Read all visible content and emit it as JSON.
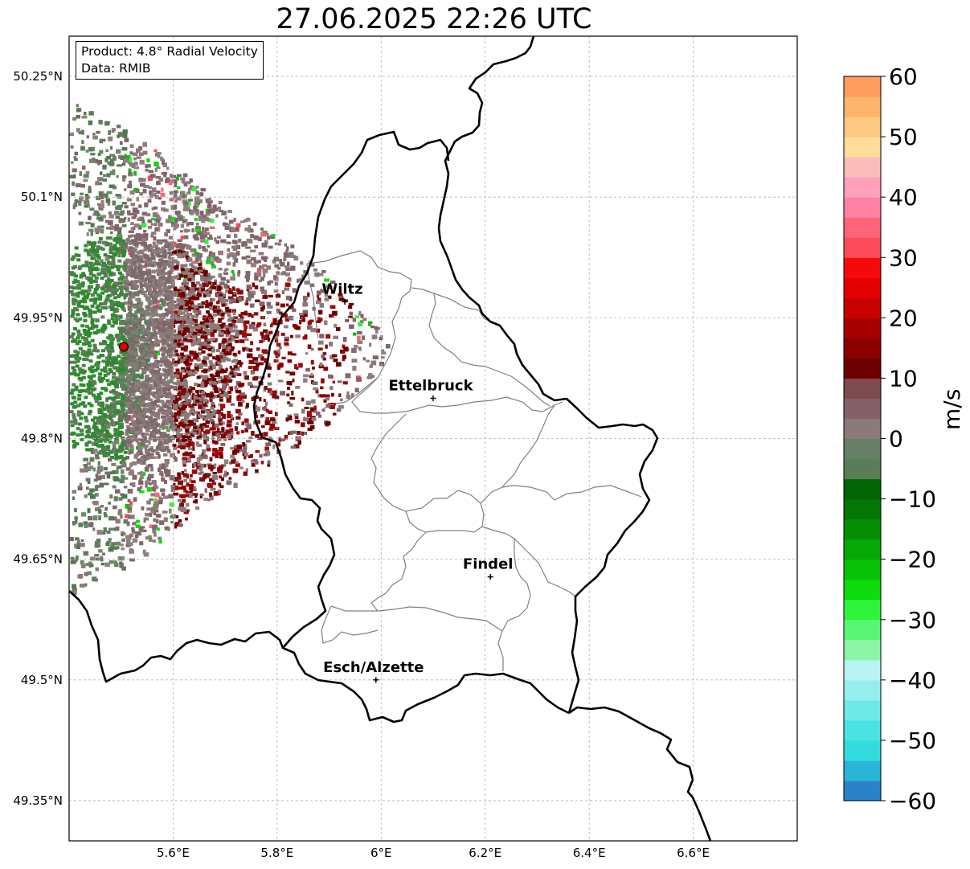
{
  "title": "27.06.2025 22:26 UTC",
  "info_box": {
    "product": "Product: 4.8° Radial Velocity",
    "source": "Data: RMIB"
  },
  "map": {
    "lon_range": [
      5.4,
      6.8
    ],
    "lat_range": [
      49.3,
      50.3
    ],
    "x_ticks": [
      "5.6°E",
      "5.8°E",
      "6°E",
      "6.2°E",
      "6.4°E",
      "6.6°E"
    ],
    "y_ticks": [
      "50.25°N",
      "50.1°N",
      "49.95°N",
      "49.8°N",
      "49.65°N",
      "49.5°N",
      "49.35°N"
    ],
    "grid": true,
    "radar_site": {
      "lon": 5.505,
      "lat": 49.914,
      "color": "#e00000"
    },
    "cities": [
      {
        "name": "Wiltz",
        "lon": 5.93,
        "lat": 49.97
      },
      {
        "name": "Ettelbruck",
        "lon": 6.1,
        "lat": 49.85
      },
      {
        "name": "Findel",
        "lon": 6.21,
        "lat": 49.628
      },
      {
        "name": "Esch/Alzette",
        "lon": 5.99,
        "lat": 49.5
      }
    ]
  },
  "colorbar": {
    "label": "m/s",
    "range": [
      -60,
      60
    ],
    "ticks": [
      "60",
      "50",
      "40",
      "30",
      "20",
      "10",
      "0",
      "−10",
      "−20",
      "−30",
      "−40",
      "−50",
      "−60"
    ],
    "colors_bottom_to_top": [
      "#2a82c8",
      "#2ab4d8",
      "#32dcdc",
      "#4ae2e2",
      "#6ee8e8",
      "#96eeee",
      "#b9f3f3",
      "#8df5a8",
      "#5af577",
      "#2ef53c",
      "#0cdc0c",
      "#08c008",
      "#06a806",
      "#048e04",
      "#037603",
      "#026402",
      "#5a7d58",
      "#657e65",
      "#8a7a78",
      "#84606a",
      "#7d4a50",
      "#6e0000",
      "#8a0000",
      "#a80000",
      "#c80000",
      "#e40000",
      "#f50a0a",
      "#fc4a5a",
      "#fd6478",
      "#fe82a2",
      "#fea0ba",
      "#fdbcbc",
      "#fddc9c",
      "#fdc880",
      "#fdb46c",
      "#fd9c5c"
    ]
  }
}
